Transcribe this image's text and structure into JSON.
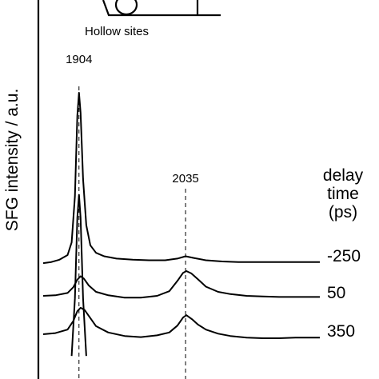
{
  "chart_data": {
    "type": "line",
    "ylabel": "SFG intensity  / a.u.",
    "inset_label": "Hollow sites",
    "peak_labels": [
      {
        "name": "peak-1904",
        "text": "1904",
        "position": 1904
      },
      {
        "name": "peak-2035",
        "text": "2035",
        "position": 2035
      }
    ],
    "legend_title": [
      "delay",
      "time",
      "(ps)"
    ],
    "xlim": [
      1860,
      2200
    ],
    "series": [
      {
        "name": "-250",
        "label": "-250",
        "offset": 0,
        "x": [
          1860,
          1870,
          1880,
          1890,
          1895,
          1899,
          1902,
          1904,
          1906,
          1909,
          1913,
          1918,
          1925,
          1935,
          1950,
          1970,
          1990,
          2010,
          2025,
          2035,
          2045,
          2060,
          2080,
          2100,
          2120,
          2140,
          2160,
          2180,
          2200
        ],
        "y": [
          0.4,
          0.6,
          1.0,
          1.8,
          4.0,
          12.0,
          26.0,
          30.0,
          26.5,
          15.0,
          7.0,
          3.5,
          2.2,
          1.6,
          1.2,
          1.0,
          0.9,
          0.9,
          1.2,
          1.6,
          1.3,
          0.9,
          0.7,
          0.6,
          0.6,
          0.6,
          0.6,
          0.6,
          0.6
        ]
      },
      {
        "name": "50",
        "label": "50",
        "offset": 0,
        "x": [
          1860,
          1875,
          1890,
          1897,
          1902,
          1906,
          1910,
          1916,
          1925,
          1940,
          1960,
          1980,
          2000,
          2015,
          2025,
          2032,
          2036,
          2042,
          2050,
          2060,
          2075,
          2090,
          2110,
          2130,
          2150,
          2170,
          2200
        ],
        "y": [
          0.0,
          0.1,
          0.5,
          1.5,
          2.8,
          3.4,
          3.0,
          1.8,
          0.7,
          0.1,
          -0.3,
          -0.3,
          0.0,
          0.8,
          2.6,
          4.0,
          4.3,
          3.9,
          2.9,
          1.6,
          0.7,
          0.3,
          0.0,
          -0.1,
          -0.2,
          -0.2,
          -0.2
        ]
      },
      {
        "name": "350",
        "label": "350",
        "offset": 0,
        "x": [
          1860,
          1875,
          1890,
          1897,
          1902,
          1906,
          1911,
          1917,
          1925,
          1940,
          1960,
          1980,
          2000,
          2015,
          2025,
          2032,
          2036,
          2043,
          2050,
          2060,
          2075,
          2090,
          2110,
          2130,
          2150,
          2170,
          2200
        ],
        "y": [
          0.0,
          0.2,
          0.8,
          2.3,
          4.0,
          4.6,
          4.2,
          3.0,
          1.4,
          0.3,
          -0.3,
          -0.5,
          -0.2,
          0.3,
          1.5,
          2.9,
          3.3,
          2.6,
          1.7,
          0.8,
          0.1,
          -0.3,
          -0.6,
          -0.7,
          -0.7,
          -0.6,
          -0.6
        ]
      },
      {
        "name": "bottom",
        "label": "",
        "offset": 0,
        "x": [
          1895,
          1899,
          1902,
          1904,
          1906,
          1909,
          1913
        ],
        "y": [
          4.0,
          14.0,
          28.0,
          32.0,
          28.0,
          14.0,
          4.0
        ]
      }
    ]
  }
}
